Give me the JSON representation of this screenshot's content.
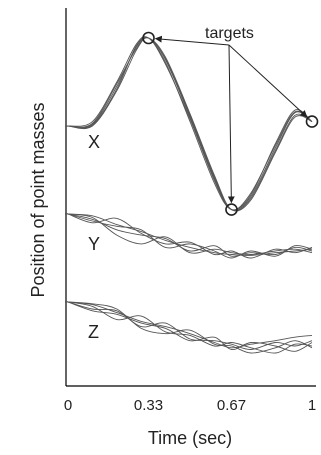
{
  "chart_data": {
    "type": "line",
    "ylabel": "Position of point masses",
    "xlabel": "Time (sec)",
    "xlim": [
      0,
      1
    ],
    "xticks": [
      {
        "value": 0,
        "label": "0"
      },
      {
        "value": 0.33,
        "label": "0.33"
      },
      {
        "value": 0.67,
        "label": "0.67"
      },
      {
        "value": 1,
        "label": "1"
      }
    ],
    "grid": false,
    "annotation": {
      "text": "targets"
    },
    "groups": [
      {
        "name": "X",
        "offset": 0.0,
        "x": [
          0,
          0.1,
          0.2,
          0.28,
          0.33,
          0.4,
          0.5,
          0.6,
          0.67,
          0.75,
          0.85,
          0.93,
          1.0
        ],
        "traces": [
          [
            0,
            0.02,
            0.45,
            0.9,
            1.0,
            0.75,
            0.1,
            -0.6,
            -0.95,
            -0.8,
            -0.25,
            0.15,
            0.05
          ],
          [
            0,
            0.05,
            0.5,
            0.93,
            1.0,
            0.72,
            0.05,
            -0.65,
            -0.95,
            -0.78,
            -0.2,
            0.18,
            0.05
          ],
          [
            0,
            0.0,
            0.4,
            0.86,
            1.0,
            0.78,
            0.14,
            -0.56,
            -0.95,
            -0.82,
            -0.28,
            0.12,
            0.05
          ],
          [
            0,
            0.03,
            0.48,
            0.88,
            1.0,
            0.7,
            0.08,
            -0.62,
            -0.95,
            -0.76,
            -0.22,
            0.16,
            0.05
          ],
          [
            0,
            0.01,
            0.42,
            0.91,
            1.0,
            0.76,
            0.12,
            -0.58,
            -0.95,
            -0.84,
            -0.3,
            0.1,
            0.05
          ]
        ],
        "targets": [
          {
            "x": 0.33,
            "y": 1.0
          },
          {
            "x": 0.67,
            "y": -0.95
          },
          {
            "x": 1.0,
            "y": 0.05
          }
        ]
      },
      {
        "name": "Y",
        "offset": -1.0,
        "x": [
          0,
          0.1,
          0.2,
          0.3,
          0.4,
          0.5,
          0.6,
          0.67,
          0.75,
          0.85,
          0.93,
          1.0
        ],
        "traces": [
          [
            0,
            -0.02,
            -0.12,
            -0.2,
            -0.3,
            -0.38,
            -0.44,
            -0.46,
            -0.47,
            -0.44,
            -0.42,
            -0.4
          ],
          [
            0,
            -0.06,
            -0.18,
            -0.24,
            -0.28,
            -0.42,
            -0.36,
            -0.48,
            -0.44,
            -0.46,
            -0.38,
            -0.42
          ],
          [
            0,
            -0.1,
            -0.05,
            -0.22,
            -0.34,
            -0.32,
            -0.46,
            -0.42,
            -0.5,
            -0.4,
            -0.44,
            -0.38
          ],
          [
            0,
            -0.04,
            -0.24,
            -0.34,
            -0.26,
            -0.44,
            -0.4,
            -0.44,
            -0.46,
            -0.42,
            -0.4,
            -0.44
          ],
          [
            0,
            -0.08,
            -0.14,
            -0.18,
            -0.38,
            -0.34,
            -0.42,
            -0.5,
            -0.42,
            -0.48,
            -0.36,
            -0.4
          ]
        ]
      },
      {
        "name": "Z",
        "offset": -2.0,
        "x": [
          0,
          0.1,
          0.2,
          0.3,
          0.4,
          0.5,
          0.6,
          0.67,
          0.75,
          0.85,
          0.93,
          1.0
        ],
        "traces": [
          [
            0,
            -0.03,
            -0.12,
            -0.22,
            -0.28,
            -0.36,
            -0.46,
            -0.52,
            -0.48,
            -0.44,
            -0.4,
            -0.38
          ],
          [
            0,
            -0.08,
            -0.1,
            -0.28,
            -0.24,
            -0.42,
            -0.44,
            -0.48,
            -0.54,
            -0.46,
            -0.5,
            -0.44
          ],
          [
            0,
            -0.05,
            -0.2,
            -0.16,
            -0.34,
            -0.38,
            -0.5,
            -0.46,
            -0.52,
            -0.58,
            -0.48,
            -0.5
          ],
          [
            0,
            -0.1,
            -0.14,
            -0.24,
            -0.3,
            -0.44,
            -0.4,
            -0.54,
            -0.46,
            -0.5,
            -0.56,
            -0.46
          ],
          [
            0,
            -0.02,
            -0.08,
            -0.3,
            -0.36,
            -0.32,
            -0.48,
            -0.5,
            -0.58,
            -0.52,
            -0.44,
            -0.52
          ]
        ]
      }
    ]
  }
}
